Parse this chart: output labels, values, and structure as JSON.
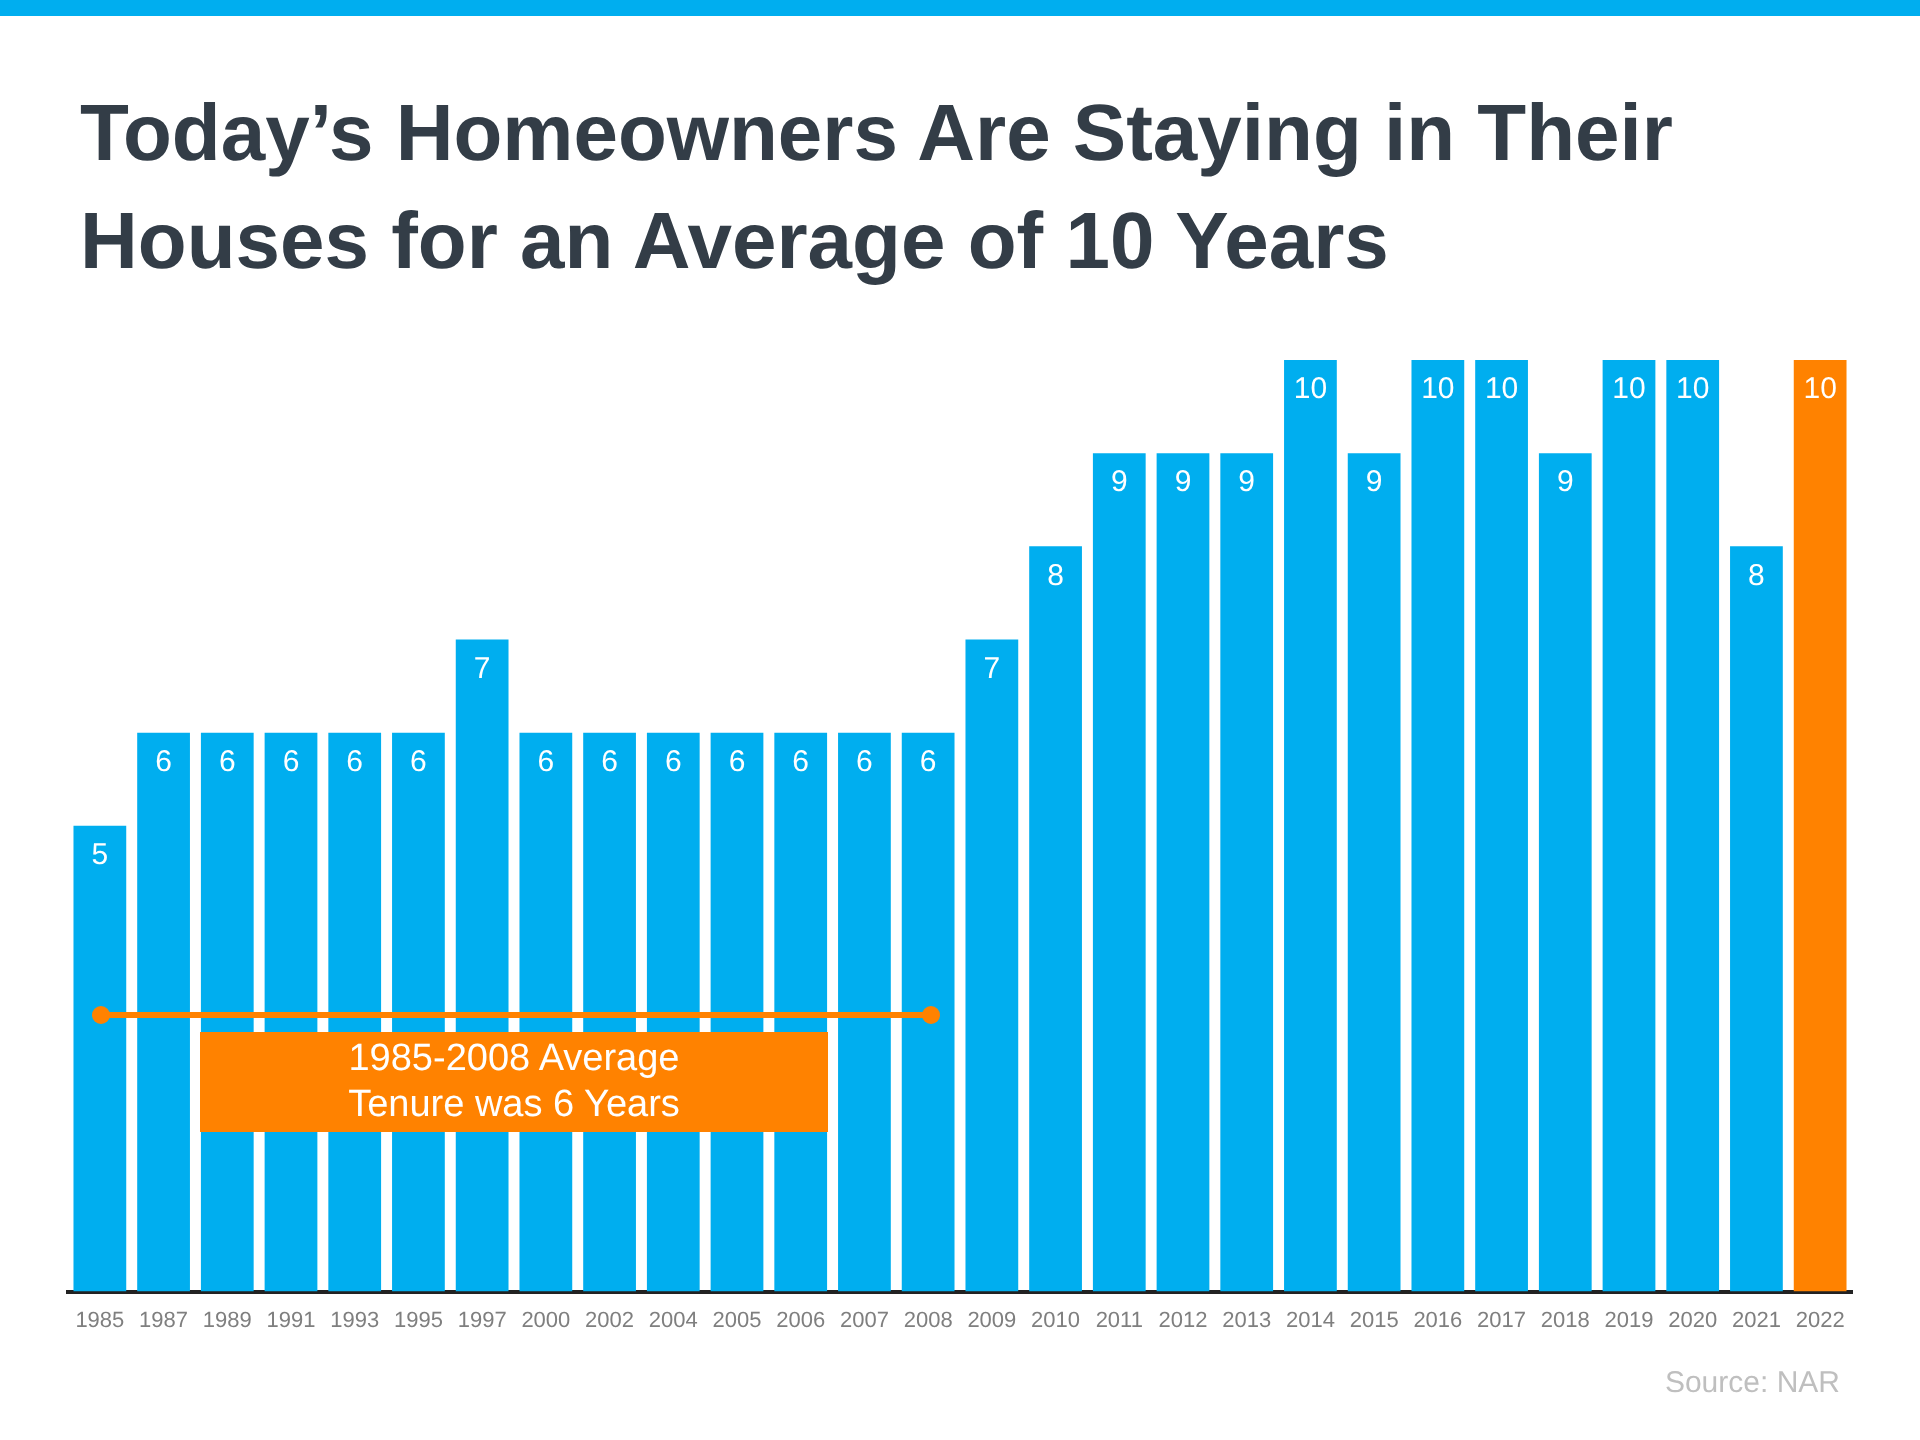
{
  "chart_data": {
    "type": "bar",
    "title": "Today’s Homeowners Are Staying in Their Houses for an Average of 10 Years",
    "categories": [
      "1985",
      "1987",
      "1989",
      "1991",
      "1993",
      "1995",
      "1997",
      "2000",
      "2002",
      "2004",
      "2005",
      "2006",
      "2007",
      "2008",
      "2009",
      "2010",
      "2011",
      "2012",
      "2013",
      "2014",
      "2015",
      "2016",
      "2017",
      "2018",
      "2019",
      "2020",
      "2021",
      "2022"
    ],
    "values": [
      5,
      6,
      6,
      6,
      6,
      6,
      7,
      6,
      6,
      6,
      6,
      6,
      6,
      6,
      7,
      8,
      9,
      9,
      9,
      10,
      9,
      10,
      10,
      9,
      10,
      10,
      8,
      10
    ],
    "colors": [
      "#00aeef",
      "#00aeef",
      "#00aeef",
      "#00aeef",
      "#00aeef",
      "#00aeef",
      "#00aeef",
      "#00aeef",
      "#00aeef",
      "#00aeef",
      "#00aeef",
      "#00aeef",
      "#00aeef",
      "#00aeef",
      "#00aeef",
      "#00aeef",
      "#00aeef",
      "#00aeef",
      "#00aeef",
      "#00aeef",
      "#00aeef",
      "#00aeef",
      "#00aeef",
      "#00aeef",
      "#00aeef",
      "#00aeef",
      "#00aeef",
      "#ff8200"
    ],
    "data_labels": true,
    "annotations": [
      "1985-2008 Average Tenure was 6 Years",
      "Source: NAR"
    ],
    "grid": false,
    "legend": false
  }
}
